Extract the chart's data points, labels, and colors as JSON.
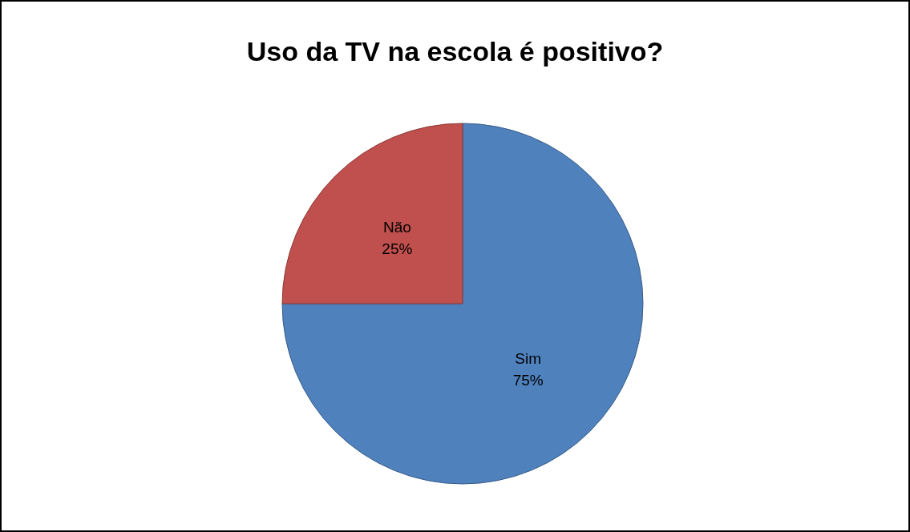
{
  "chart_data": {
    "type": "pie",
    "title": "Uso da TV na escola é positivo?",
    "categories": [
      "Sim",
      "Não"
    ],
    "values": [
      75,
      25
    ],
    "colors": [
      "#4f81bd",
      "#c0504d"
    ],
    "value_labels": [
      "75%",
      "25%"
    ],
    "legend": false
  }
}
